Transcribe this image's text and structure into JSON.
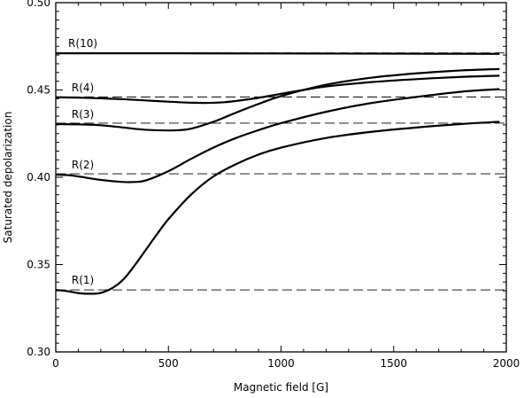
{
  "chart_data": {
    "type": "line",
    "title": "",
    "xlabel": "Magnetic field [G]",
    "ylabel": "Saturated depolarization",
    "xlim": [
      0,
      2000
    ],
    "ylim": [
      0.3,
      0.5
    ],
    "xticks": [
      0,
      500,
      1000,
      1500,
      2000
    ],
    "xtick_labels": [
      "0",
      "500",
      "1000",
      "1500",
      "2000"
    ],
    "yticks": [
      0.3,
      0.35,
      0.4,
      0.45,
      0.5
    ],
    "ytick_labels": [
      "0.30",
      "0.35",
      "0.40",
      "0.45",
      "0.50"
    ],
    "grid": false,
    "legend": "none",
    "line_color": "#000000",
    "series": [
      {
        "name": "R(1)",
        "x": [
          0,
          50,
          100,
          150,
          200,
          250,
          300,
          350,
          400,
          450,
          500,
          600,
          700,
          800,
          900,
          1000,
          1200,
          1400,
          1600,
          1800,
          1970
        ],
        "y": [
          0.3355,
          0.3348,
          0.3337,
          0.3333,
          0.3338,
          0.3365,
          0.3415,
          0.3495,
          0.3585,
          0.3675,
          0.376,
          0.39,
          0.4005,
          0.4075,
          0.413,
          0.417,
          0.4225,
          0.426,
          0.4285,
          0.4305,
          0.4318
        ],
        "baseline": 0.3355
      },
      {
        "name": "R(2)",
        "x": [
          0,
          50,
          100,
          200,
          300,
          350,
          400,
          500,
          600,
          700,
          800,
          900,
          1000,
          1200,
          1400,
          1600,
          1800,
          1970
        ],
        "y": [
          0.4015,
          0.4013,
          0.4005,
          0.3985,
          0.3973,
          0.3973,
          0.3982,
          0.4035,
          0.4105,
          0.417,
          0.4225,
          0.427,
          0.431,
          0.4375,
          0.4425,
          0.446,
          0.449,
          0.4505
        ],
        "baseline": 0.402
      },
      {
        "name": "R(3)",
        "x": [
          0,
          100,
          200,
          300,
          400,
          500,
          550,
          600,
          700,
          800,
          900,
          1000,
          1200,
          1400,
          1600,
          1800,
          1970
        ],
        "y": [
          0.4305,
          0.4303,
          0.4298,
          0.4285,
          0.4272,
          0.4268,
          0.427,
          0.4278,
          0.4318,
          0.437,
          0.442,
          0.4465,
          0.453,
          0.457,
          0.4595,
          0.4612,
          0.462
        ],
        "baseline": 0.431
      },
      {
        "name": "R(4)",
        "x": [
          0,
          100,
          200,
          300,
          400,
          500,
          600,
          680,
          750,
          800,
          900,
          1000,
          1100,
          1200,
          1400,
          1600,
          1800,
          1970
        ],
        "y": [
          0.4458,
          0.4456,
          0.4452,
          0.4447,
          0.444,
          0.4433,
          0.4427,
          0.4426,
          0.443,
          0.4437,
          0.4455,
          0.4478,
          0.45,
          0.452,
          0.4545,
          0.4562,
          0.4575,
          0.4582
        ],
        "baseline": 0.446
      },
      {
        "name": "R(10)",
        "x": [
          0,
          500,
          1000,
          1500,
          1970
        ],
        "y": [
          0.471,
          0.471,
          0.4709,
          0.4708,
          0.4707
        ],
        "baseline": 0.4712
      }
    ]
  }
}
